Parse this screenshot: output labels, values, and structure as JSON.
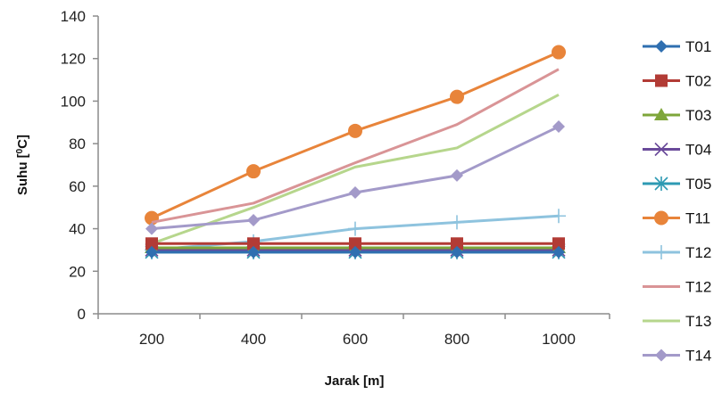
{
  "chart_data": {
    "type": "line",
    "xlabel": "Jarak [m]",
    "ylabel_prefix": "Suhu [",
    "ylabel_sup": "0",
    "ylabel_suffix": "C]",
    "x": [
      200,
      400,
      600,
      800,
      1000
    ],
    "ylim": [
      0,
      140
    ],
    "yticks": [
      0,
      20,
      40,
      60,
      80,
      100,
      120,
      140
    ],
    "grid": false,
    "legend_position": "right",
    "series": [
      {
        "name": "T01",
        "values": [
          29,
          29,
          29,
          29,
          29
        ],
        "color": "#2f6fb0",
        "marker": "diamond"
      },
      {
        "name": "T02",
        "values": [
          33,
          33,
          33,
          33,
          33
        ],
        "color": "#b23b35",
        "marker": "square"
      },
      {
        "name": "T03",
        "values": [
          31,
          31,
          31,
          31,
          31
        ],
        "color": "#7ea63a",
        "marker": "triangle"
      },
      {
        "name": "T04",
        "values": [
          30,
          30,
          30,
          30,
          30
        ],
        "color": "#6a4a9a",
        "marker": "x"
      },
      {
        "name": "T05",
        "values": [
          29,
          29,
          29,
          29,
          29
        ],
        "color": "#2d9ab3",
        "marker": "star"
      },
      {
        "name": "T11",
        "values": [
          45,
          67,
          86,
          102,
          123
        ],
        "color": "#e8843a",
        "marker": "circle"
      },
      {
        "name": "T12",
        "values": [
          30,
          34,
          40,
          43,
          46
        ],
        "color": "#8ec3de",
        "marker": "plus"
      },
      {
        "name": "T12",
        "values": [
          43,
          52,
          71,
          89,
          115
        ],
        "color": "#d99496",
        "marker": "line"
      },
      {
        "name": "T13",
        "values": [
          33,
          50,
          69,
          78,
          103
        ],
        "color": "#b6d68c",
        "marker": "line"
      },
      {
        "name": "T14",
        "values": [
          40,
          44,
          57,
          65,
          88
        ],
        "color": "#a39ac9",
        "marker": "diamond"
      }
    ]
  }
}
